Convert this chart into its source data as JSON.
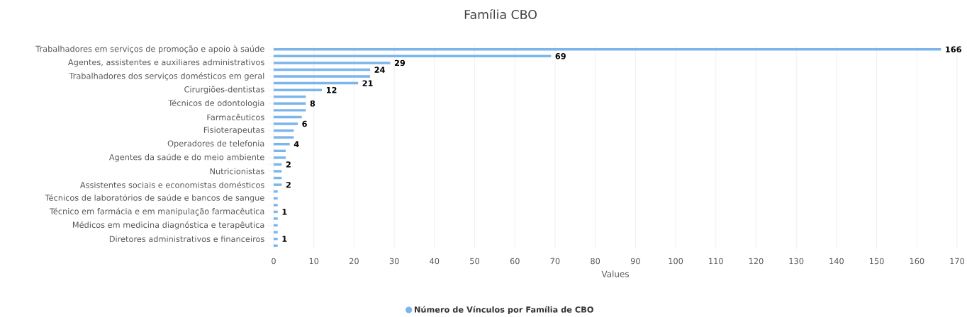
{
  "chart_data": {
    "type": "bar",
    "orientation": "horizontal",
    "title": "Família CBO",
    "xlabel": "Values",
    "categories": [
      "Trabalhadores em serviços de promoção e apoio à saúde",
      null,
      "Agentes, assistentes e auxiliares administrativos",
      null,
      "Trabalhadores dos serviços domésticos em geral",
      null,
      "Cirurgiões-dentistas",
      null,
      "Técnicos de odontologia",
      null,
      "Farmacêuticos",
      null,
      "Fisioterapeutas",
      null,
      "Operadores de telefonia",
      null,
      "Agentes da saúde e do meio ambiente",
      null,
      "Nutricionistas",
      null,
      "Assistentes sociais e economistas domésticos",
      null,
      "Técnicos de laboratórios de saúde e bancos de sangue",
      null,
      "Técnico em farmácia e em manipulação farmacêutica",
      null,
      "Médicos em medicina diagnóstica e terapêutica",
      null,
      "Diretores administrativos e financeiros",
      null
    ],
    "series": [
      {
        "name": "Número de Vínculos por Família de CBO",
        "color": "#7cb5ec",
        "values": [
          166,
          69,
          29,
          24,
          24,
          21,
          12,
          8,
          8,
          8,
          7,
          6,
          5,
          5,
          4,
          3,
          3,
          2,
          2,
          2,
          2,
          1,
          1,
          1,
          1,
          1,
          1,
          1,
          1,
          1
        ],
        "value_labels": [
          "166",
          "69",
          "29",
          "24",
          null,
          "21",
          "12",
          null,
          "8",
          null,
          null,
          "6",
          null,
          null,
          "4",
          null,
          null,
          "2",
          null,
          null,
          "2",
          null,
          null,
          null,
          "1",
          null,
          null,
          null,
          "1",
          null
        ]
      }
    ],
    "xlim": [
      0,
      170
    ],
    "xticks": [
      0,
      10,
      20,
      30,
      40,
      50,
      60,
      70,
      80,
      90,
      100,
      110,
      120,
      130,
      140,
      150,
      160,
      170
    ],
    "grid": "x",
    "legend": "bottom"
  }
}
